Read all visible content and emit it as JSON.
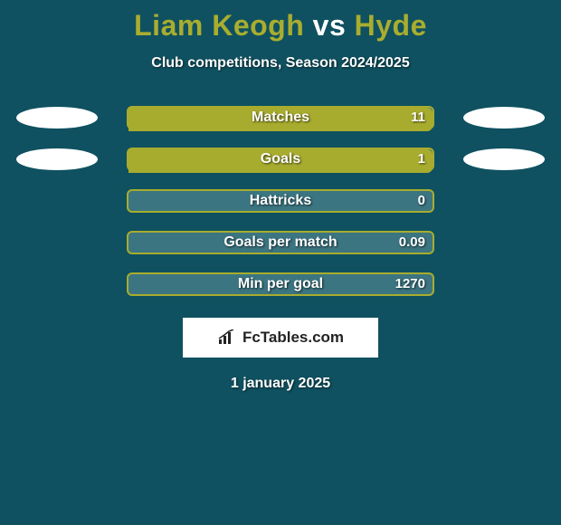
{
  "colors": {
    "background": "#0f5160",
    "title_player": "#a9ad2f",
    "title_vs": "#ffffff",
    "subtitle": "#ffffff",
    "bar_track": "#3b7581",
    "bar_fill": "#a8ac2e",
    "bar_text": "#ffffff",
    "ellipse": "#ffffff",
    "brand_bg": "#ffffff",
    "brand_text": "#232323",
    "brand_icon": "#232323",
    "date_text": "#ffffff"
  },
  "title": {
    "player1": "Liam Keogh",
    "vs": "vs",
    "player2": "Hyde",
    "fontsize": 32
  },
  "subtitle": "Club competitions, Season 2024/2025",
  "bar": {
    "track_width": 340,
    "track_height": 26,
    "radius": 6
  },
  "stats": [
    {
      "label": "Matches",
      "left_val": "",
      "right_val": "11",
      "left_pct": 0,
      "right_pct": 100,
      "show_left_ellipse": true,
      "show_right_ellipse": true
    },
    {
      "label": "Goals",
      "left_val": "",
      "right_val": "1",
      "left_pct": 0,
      "right_pct": 100,
      "show_left_ellipse": true,
      "show_right_ellipse": true
    },
    {
      "label": "Hattricks",
      "left_val": "",
      "right_val": "0",
      "left_pct": 0,
      "right_pct": 0,
      "show_left_ellipse": false,
      "show_right_ellipse": false
    },
    {
      "label": "Goals per match",
      "left_val": "",
      "right_val": "0.09",
      "left_pct": 0,
      "right_pct": 0,
      "show_left_ellipse": false,
      "show_right_ellipse": false
    },
    {
      "label": "Min per goal",
      "left_val": "",
      "right_val": "1270",
      "left_pct": 0,
      "right_pct": 0,
      "show_left_ellipse": false,
      "show_right_ellipse": false
    }
  ],
  "brand": "FcTables.com",
  "date": "1 january 2025"
}
